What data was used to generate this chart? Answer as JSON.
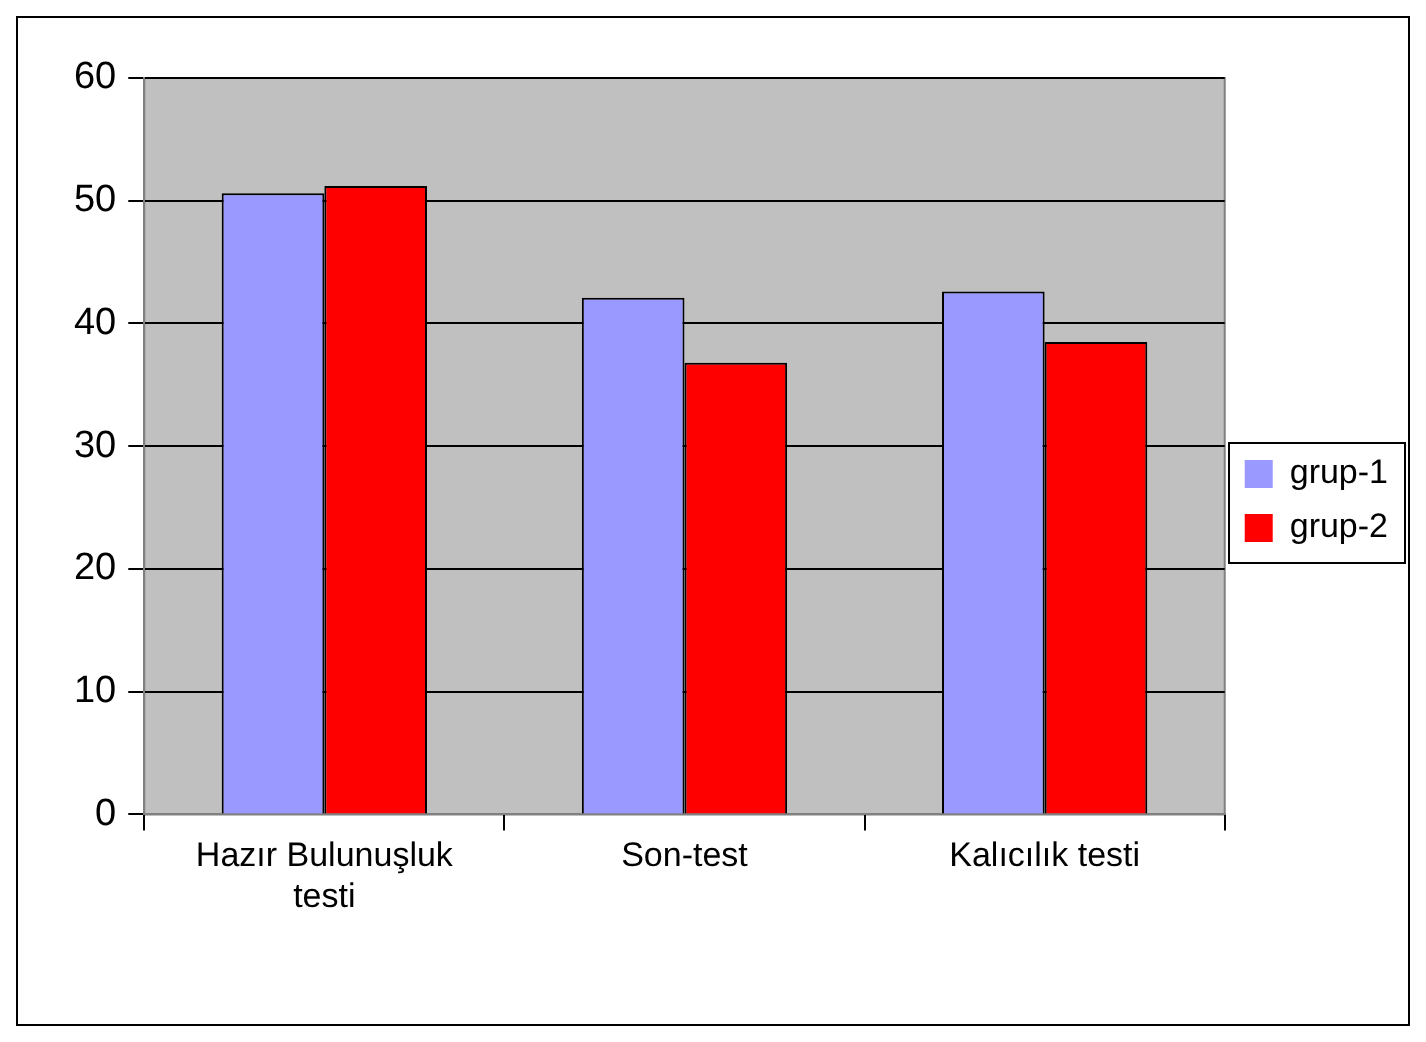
{
  "chart_data": {
    "type": "bar",
    "categories": [
      "Hazır Bulunuşluk testi",
      "Son-test",
      "Kalıcılık testi"
    ],
    "series": [
      {
        "name": "grup-1",
        "color": "#9999ff",
        "values": [
          50.6,
          42.1,
          42.6
        ]
      },
      {
        "name": "grup-2",
        "color": "#ff0000",
        "values": [
          51.2,
          36.8,
          38.5
        ]
      }
    ],
    "ylim": [
      0,
      60
    ],
    "yticks": [
      0,
      10,
      20,
      30,
      40,
      50,
      60
    ],
    "grid": "y",
    "legend": "right"
  }
}
